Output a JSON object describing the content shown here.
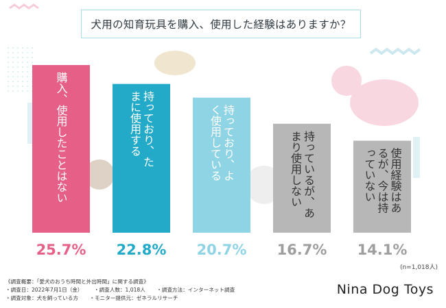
{
  "chart_data": {
    "type": "bar",
    "title": "犬用の知育玩具を購入、使用した経験はありますか？",
    "categories": [
      "購入、使用したことはない",
      "持っており、たまに使用する",
      "持っており、よく使用している",
      "持っているが、あまり使用しない",
      "使用経験はあるが、今は持っていない"
    ],
    "values": [
      25.7,
      22.8,
      20.7,
      16.7,
      14.1
    ],
    "value_labels": [
      "25.7%",
      "22.8%",
      "20.7%",
      "16.7%",
      "14.1%"
    ],
    "colors": [
      "#e65f86",
      "#23aac8",
      "#8fd4e4",
      "#b7b7b7",
      "#b7b7b7"
    ],
    "label_colors": [
      "#ffffff",
      "#ffffff",
      "#ffffff",
      "#333333",
      "#333333"
    ],
    "value_label_colors": [
      "#e65f86",
      "#23aac8",
      "#8fd4e4",
      "#9e9e9e",
      "#9e9e9e"
    ],
    "ylim": [
      0,
      25.7
    ],
    "grid": false,
    "legend": "none",
    "sample_size": "(n=1,018人)"
  },
  "footnote": {
    "heading": "《調査概要：「愛犬のおうち時間と外出時間」に関する調査》",
    "line1": [
      "・調査日：2022年7月1日（金）",
      "・調査人数：1,018人",
      "・調査方法：インターネット調査"
    ],
    "line2": [
      "・調査対象：犬を飼っている方",
      "・モニター提供元：ゼネラルリサーチ"
    ]
  },
  "brand": "Nina Dog Toys"
}
